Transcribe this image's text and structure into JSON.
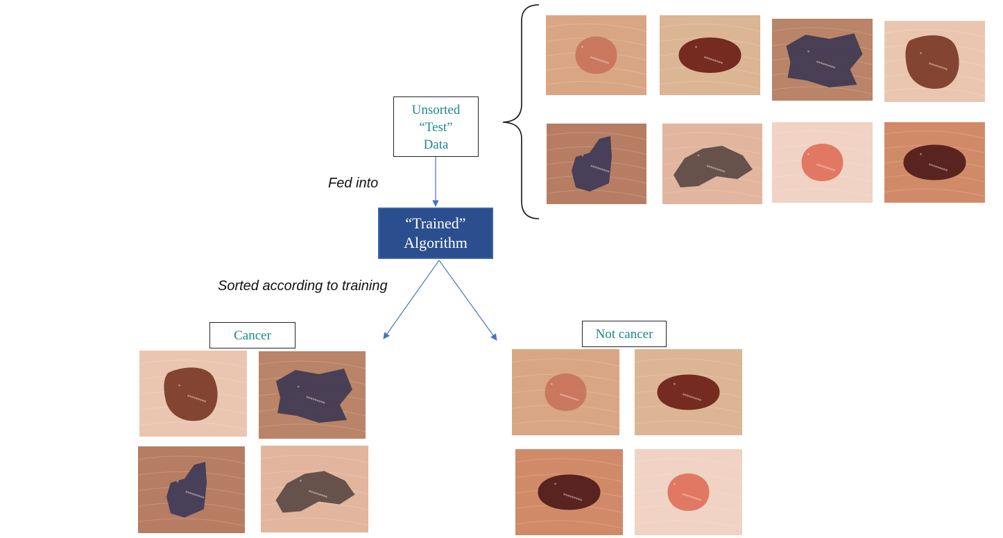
{
  "unsorted_box": {
    "lines": [
      "Unsorted",
      "“Test”",
      "Data"
    ]
  },
  "arrow_label_fed": "Fed into",
  "algorithm_box": {
    "lines": [
      "“Trained”",
      "Algorithm"
    ]
  },
  "arrow_label_sorted": "Sorted according to training",
  "cancer_label": "Cancer",
  "not_cancer_label": "Not cancer",
  "colors": {
    "arrow": "#4a72c4",
    "label_text": "#1a8a86",
    "algorithm_fill": "#2b4f8e"
  },
  "test_images": [
    {
      "name": "lesion-light-round",
      "skin": "#d9a684",
      "lesion": "#c9745a",
      "shape": "round"
    },
    {
      "name": "lesion-dark-oval",
      "skin": "#dcb594",
      "lesion": "#6b1f16",
      "shape": "oval"
    },
    {
      "name": "lesion-irregular-dark",
      "skin": "#b98467",
      "lesion": "#3e3a52",
      "shape": "irregular"
    },
    {
      "name": "lesion-irregular-brown",
      "skin": "#eac6b0",
      "lesion": "#7a3a26",
      "shape": "square"
    },
    {
      "name": "lesion-irregular-purple",
      "skin": "#b67d62",
      "lesion": "#3f3a58",
      "shape": "tall"
    },
    {
      "name": "lesion-irregular-gray",
      "skin": "#e2b59e",
      "lesion": "#5b4a44",
      "shape": "wide"
    },
    {
      "name": "lesion-light-red",
      "skin": "#f0d3c4",
      "lesion": "#e0705a",
      "shape": "round"
    },
    {
      "name": "lesion-dark-round",
      "skin": "#d08a68",
      "lesion": "#4e1a1a",
      "shape": "oval"
    }
  ],
  "cancer_images": [
    {
      "name": "lesion-irregular-brown",
      "skin": "#eac6b0",
      "lesion": "#7a3a26",
      "shape": "square"
    },
    {
      "name": "lesion-irregular-dark",
      "skin": "#b98467",
      "lesion": "#3e3a52",
      "shape": "irregular"
    },
    {
      "name": "lesion-irregular-purple",
      "skin": "#b67d62",
      "lesion": "#3f3a58",
      "shape": "tall"
    },
    {
      "name": "lesion-irregular-gray",
      "skin": "#e2b59e",
      "lesion": "#5b4a44",
      "shape": "wide"
    }
  ],
  "not_cancer_images": [
    {
      "name": "lesion-light-round",
      "skin": "#d9a684",
      "lesion": "#c9745a",
      "shape": "round"
    },
    {
      "name": "lesion-dark-oval",
      "skin": "#dcb594",
      "lesion": "#6b1f16",
      "shape": "oval"
    },
    {
      "name": "lesion-dark-round",
      "skin": "#d08a68",
      "lesion": "#4e1a1a",
      "shape": "oval"
    },
    {
      "name": "lesion-light-red",
      "skin": "#f0d3c4",
      "lesion": "#e0705a",
      "shape": "round"
    }
  ]
}
